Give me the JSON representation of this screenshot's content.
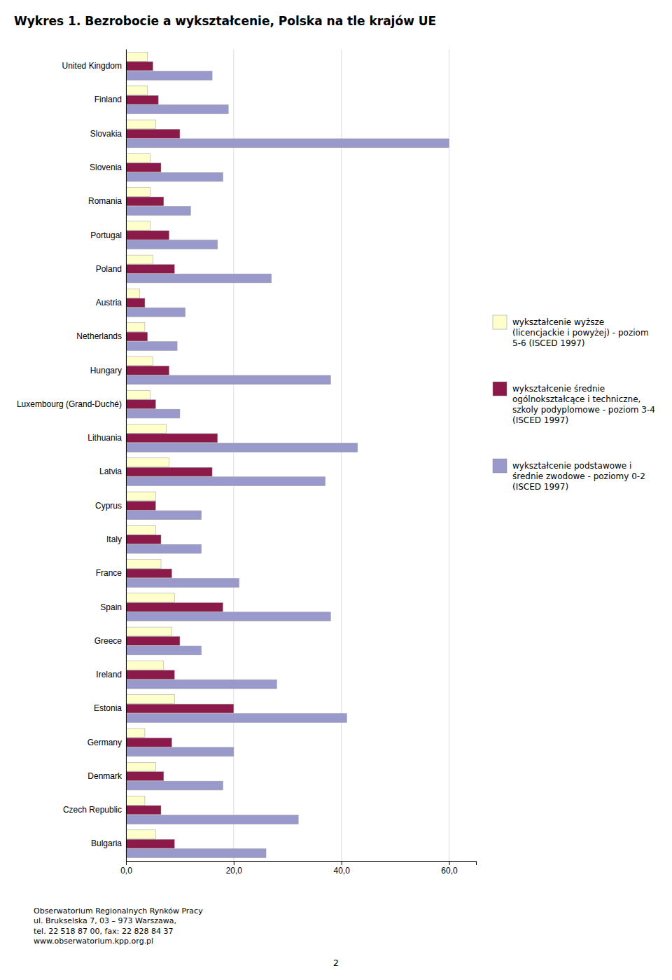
{
  "chart_data": {
    "type": "bar",
    "orientation": "horizontal",
    "title": "Wykres 1. Bezrobocie a wykształcenie, Polska na tle krajów UE",
    "categories": [
      "United Kingdom",
      "Finland",
      "Slovakia",
      "Slovenia",
      "Romania",
      "Portugal",
      "Poland",
      "Austria",
      "Netherlands",
      "Hungary",
      "Luxembourg (Grand-Duché)",
      "Lithuania",
      "Latvia",
      "Cyprus",
      "Italy",
      "France",
      "Spain",
      "Greece",
      "Ireland",
      "Estonia",
      "Germany",
      "Denmark",
      "Czech Republic",
      "Bulgaria"
    ],
    "series": [
      {
        "name": "wykształcenie wyższe\n(licencjackie i powyżej) - poziom\n5-6 (ISCED 1997)",
        "color": "#FFFFCC",
        "values": [
          4.0,
          4.0,
          5.5,
          4.5,
          4.5,
          4.5,
          5.0,
          2.5,
          3.5,
          5.0,
          4.5,
          7.5,
          8.0,
          5.5,
          5.5,
          6.5,
          9.0,
          8.5,
          7.0,
          9.0,
          3.5,
          5.5,
          3.5,
          5.5
        ]
      },
      {
        "name": "wykształcenie średnie\nogólnokształcące i techniczne,\nszkoly podyplomowe - poziom 3-4\n(ISCED 1997)",
        "color": "#8B1A4A",
        "values": [
          5.0,
          6.0,
          10.0,
          6.5,
          7.0,
          8.0,
          9.0,
          3.5,
          4.0,
          8.0,
          5.5,
          17.0,
          16.0,
          5.5,
          6.5,
          8.5,
          18.0,
          10.0,
          9.0,
          20.0,
          8.5,
          7.0,
          6.5,
          9.0
        ]
      },
      {
        "name": "wykształcenie podstawowe i\nśrednie zwodowe - poziomy 0-2\n(ISCED 1997)",
        "color": "#9999CC",
        "values": [
          16.0,
          19.0,
          60.0,
          18.0,
          12.0,
          17.0,
          27.0,
          11.0,
          9.5,
          38.0,
          10.0,
          43.0,
          37.0,
          14.0,
          14.0,
          21.0,
          38.0,
          14.0,
          28.0,
          41.0,
          20.0,
          18.0,
          32.0,
          26.0
        ]
      }
    ],
    "xlim": [
      0,
      65
    ],
    "xticks": [
      {
        "value": 0.0,
        "label": "0,0"
      },
      {
        "value": 20.0,
        "label": "20,0"
      },
      {
        "value": 40.0,
        "label": "40,0"
      },
      {
        "value": 60.0,
        "label": "60,0"
      }
    ],
    "grid": true,
    "legend": "right",
    "annotations": [
      "Obserwatorium Regionalnych Rynków Pracy\nul. Brukselska 7, 03 – 973 Warszawa,\ntel. 22 518 87 00, fax: 22 828 84 37\nwww.obserwatorium.kpp.org.pl",
      "2"
    ]
  }
}
